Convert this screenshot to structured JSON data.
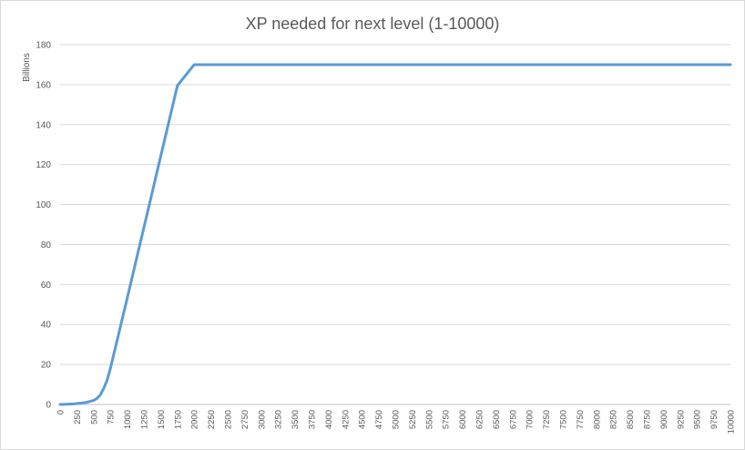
{
  "chart_data": {
    "type": "line",
    "title": "XP needed for next level (1-10000)",
    "xlabel": "",
    "ylabel": "Billions",
    "xlim": [
      0,
      10000
    ],
    "ylim": [
      0,
      180
    ],
    "y_ticks": [
      0,
      20,
      40,
      60,
      80,
      100,
      120,
      140,
      160,
      180
    ],
    "x_ticks": [
      0,
      250,
      500,
      750,
      1000,
      1250,
      1500,
      1750,
      2000,
      2250,
      2500,
      2750,
      3000,
      3250,
      3500,
      3750,
      4000,
      4250,
      4500,
      4750,
      5000,
      5250,
      5500,
      5750,
      6000,
      6250,
      6500,
      6750,
      7000,
      7250,
      7500,
      7750,
      8000,
      8250,
      8500,
      8750,
      9000,
      9250,
      9500,
      9750,
      10000
    ],
    "grid": true,
    "legend": "none",
    "series": [
      {
        "color": "#5b9bd5",
        "x": [
          0,
          100,
          200,
          300,
          400,
          500,
          550,
          600,
          650,
          700,
          750,
          800,
          1000,
          1250,
          1500,
          1750,
          2000,
          2050,
          2500,
          3000,
          4000,
          5000,
          6000,
          7000,
          8000,
          9000,
          10000
        ],
        "y": [
          0,
          0.1,
          0.3,
          0.6,
          1.1,
          2.0,
          3.0,
          4.8,
          8.0,
          12.0,
          18.0,
          25.0,
          53.0,
          88.5,
          124.0,
          159.5,
          170.0,
          170.0,
          170.0,
          170.0,
          170.0,
          170.0,
          170.0,
          170.0,
          170.0,
          170.0,
          170.0
        ]
      }
    ]
  }
}
